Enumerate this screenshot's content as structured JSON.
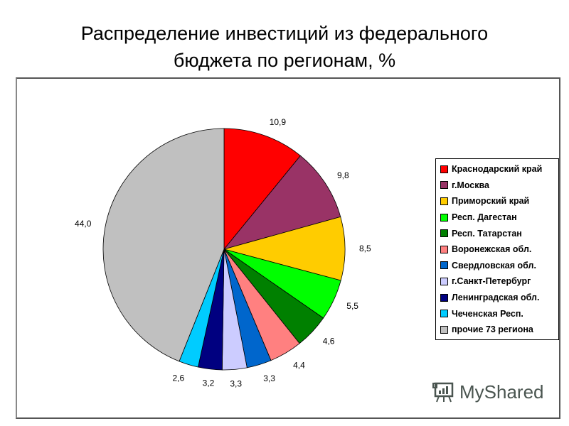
{
  "title": {
    "line1": "Распределение инвестиций из федерального",
    "line2": "бюджета по регионам, %"
  },
  "chart_data": {
    "type": "pie",
    "title": "Распределение инвестиций из федерального бюджета по регионам, %",
    "categories": [
      "Краснодарский край",
      "г.Москва",
      "Приморский край",
      "Респ. Дагестан",
      "Респ. Татарстан",
      "Воронежская обл.",
      "Свердловская обл.",
      "г.Санкт-Петербург",
      "Ленинградская обл.",
      "Чеченская Респ.",
      "прочие 73 региона"
    ],
    "values": [
      10.9,
      9.8,
      8.5,
      5.5,
      4.6,
      4.4,
      3.3,
      3.3,
      3.2,
      2.6,
      44.0
    ],
    "value_labels": [
      "10,9",
      "9,8",
      "8,5",
      "5,5",
      "4,6",
      "4,4",
      "3,3",
      "3,3",
      "3,2",
      "2,6",
      "44,0"
    ],
    "colors": [
      "#ff0000",
      "#993366",
      "#ffcc00",
      "#00ff00",
      "#008000",
      "#ff8080",
      "#0066cc",
      "#ccccff",
      "#000080",
      "#00ccff",
      "#c0c0c0"
    ],
    "start_angle_deg": 0,
    "direction": "clockwise",
    "legend_position": "right"
  },
  "legend": {
    "items": [
      {
        "label": "Краснодарский край",
        "color": "#ff0000"
      },
      {
        "label": "г.Москва",
        "color": "#993366"
      },
      {
        "label": "Приморский край",
        "color": "#ffcc00"
      },
      {
        "label": "Респ. Дагестан",
        "color": "#00ff00"
      },
      {
        "label": "Респ. Татарстан",
        "color": "#008000"
      },
      {
        "label": "Воронежская обл.",
        "color": "#ff8080"
      },
      {
        "label": "Свердловская обл.",
        "color": "#0066cc"
      },
      {
        "label": "г.Санкт-Петербург",
        "color": "#ccccff"
      },
      {
        "label": "Ленинградская обл.",
        "color": "#000080"
      },
      {
        "label": "Чеченская Респ.",
        "color": "#00ccff"
      },
      {
        "label": "прочие 73 региона",
        "color": "#c0c0c0"
      }
    ]
  },
  "watermark": {
    "text": "MyShared"
  }
}
